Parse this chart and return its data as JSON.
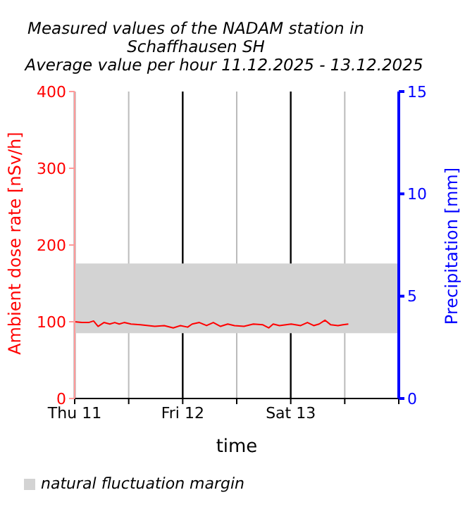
{
  "chart_data": {
    "type": "line",
    "title": "Measured values of the NADAM station in Schaffhausen SH",
    "subtitle": "Average value per hour 11.12.2025 - 13.12.2025",
    "xlabel": "time",
    "ylabel": "Ambient dose rate [nSv/h]",
    "y2label": "Precipitation [mm]",
    "x": [
      "2025-12-11T00:00",
      "2025-12-11T01:36",
      "2025-12-11T03:06",
      "2025-12-11T04:12",
      "2025-12-11T05:12",
      "2025-12-11T06:30",
      "2025-12-11T07:48",
      "2025-12-11T08:54",
      "2025-12-11T09:54",
      "2025-12-11T11:00",
      "2025-12-11T12:30",
      "2025-12-11T14:36",
      "2025-12-11T17:48",
      "2025-12-11T19:54",
      "2025-12-11T21:54",
      "2025-12-11T23:30",
      "2025-12-12T01:06",
      "2025-12-12T02:06",
      "2025-12-12T03:42",
      "2025-12-12T05:18",
      "2025-12-12T06:48",
      "2025-12-12T08:24",
      "2025-12-12T10:00",
      "2025-12-12T11:30",
      "2025-12-12T13:36",
      "2025-12-12T15:42",
      "2025-12-12T17:48",
      "2025-12-12T19:06",
      "2025-12-12T20:06",
      "2025-12-12T21:30",
      "2025-12-13T00:06",
      "2025-12-13T02:12",
      "2025-12-13T03:42",
      "2025-12-13T05:06",
      "2025-12-13T06:18",
      "2025-12-13T07:36",
      "2025-12-13T08:54",
      "2025-12-13T10:30",
      "2025-12-13T11:36",
      "2025-12-13T12:48"
    ],
    "series": [
      {
        "color": "#ff0000",
        "values": [
          100,
          99,
          99,
          101,
          94,
          99,
          97,
          99,
          97,
          99,
          97,
          96,
          94,
          95,
          92,
          95,
          93,
          97,
          99,
          95,
          99,
          94,
          97,
          95,
          94,
          97,
          96,
          92,
          97,
          95,
          97,
          95,
          99,
          95,
          97,
          102,
          96,
          95,
          96,
          97
        ]
      }
    ],
    "xlim": [
      "2025-12-11T00:00",
      "2025-12-14T00:00"
    ],
    "xticks": [
      {
        "value": "2025-12-11T00:00",
        "label": "Thu 11"
      },
      {
        "value": "2025-12-11T12:00",
        "label": null
      },
      {
        "value": "2025-12-12T00:00",
        "label": "Fri 12"
      },
      {
        "value": "2025-12-12T12:00",
        "label": null
      },
      {
        "value": "2025-12-13T00:00",
        "label": "Sat 13"
      },
      {
        "value": "2025-12-13T12:00",
        "label": null
      },
      {
        "value": "2025-12-14T00:00",
        "label": null
      }
    ],
    "ylim": [
      0,
      400
    ],
    "yticks": [
      0,
      100,
      200,
      300,
      400
    ],
    "y2lim": [
      0,
      15
    ],
    "y2ticks": [
      0,
      5,
      10,
      15
    ],
    "bands": [
      {
        "axis": "y",
        "from": 85,
        "to": 176,
        "label": "natural fluctuation margin",
        "color": "#d3d3d3"
      }
    ],
    "grid": "x",
    "legend": "bottom",
    "marker": "none",
    "line_style": "solid"
  }
}
